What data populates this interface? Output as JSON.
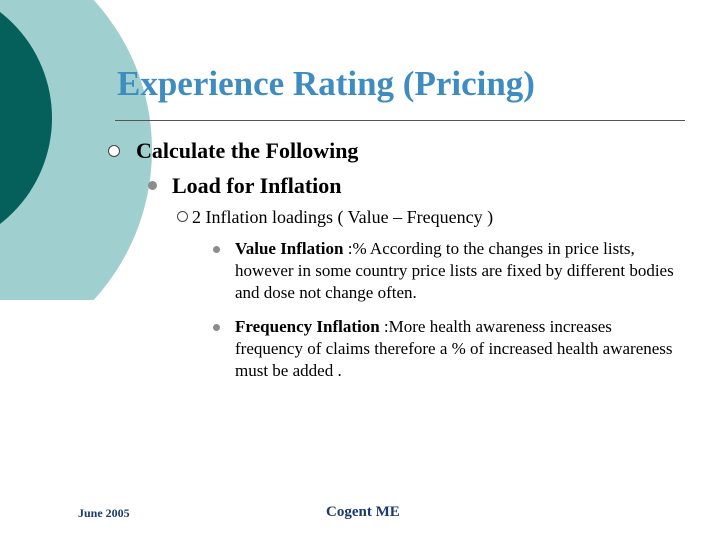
{
  "title": "Experience Rating (Pricing)",
  "level1": "Calculate the Following",
  "level2": "Load for Inflation",
  "level3": "2 Inflation loadings ( Value – Frequency )",
  "items": [
    {
      "term": "Value Inflation",
      "text": " :% According to the changes in price lists, however in some country price lists are fixed by different bodies and dose not change often."
    },
    {
      "term": "Frequency Inflation",
      "text": " :More health awareness increases frequency of claims therefore a % of increased health awareness must be added ."
    }
  ],
  "footer": {
    "date": "June 2005",
    "center": "Cogent ME"
  },
  "colors": {
    "title": "#3e8cc0",
    "decor_dark": "#05605c",
    "decor_light": "#9fcfcf",
    "footer": "#1a3a6e"
  }
}
